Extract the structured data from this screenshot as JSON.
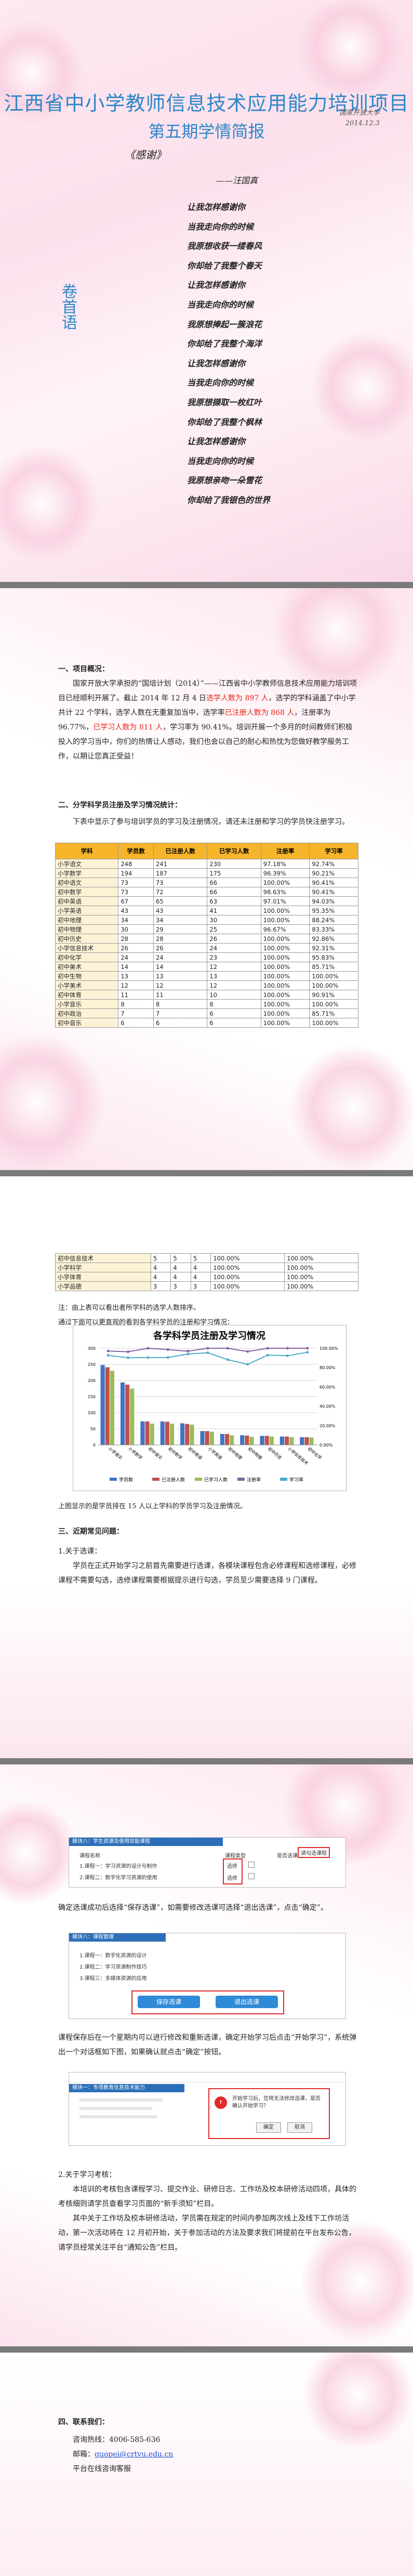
{
  "header": {
    "title": "江西省中小学教师信息技术应用能力培训项目",
    "subtitle": "第五期学情简报",
    "publisher": "国家开放大学",
    "date": "2014.12.3"
  },
  "poem": {
    "heading": "《感谢》",
    "author": "——汪国真",
    "lines": [
      "让我怎样感谢你",
      "当我走向你的时候",
      "我原想收获一缕春风",
      "你却给了我整个春天",
      "让我怎样感谢你",
      "当我走向你的时候",
      "我原想捧起一簇浪花",
      "你却给了我整个海洋",
      "让我怎样感谢你",
      "当我走向你的时候",
      "我原想撷取一枚红叶",
      "你却给了我整个枫林",
      "让我怎样感谢你",
      "当我走向你的时候",
      "我原想亲吻一朵雪花",
      "你却给了我银色的世界"
    ],
    "side_label": "卷首语"
  },
  "section1": {
    "heading": "一、项目概况：",
    "p1_a": "国家开放大学承担的“国培计划（2014）”——江西省中小学教师信息技术应用能力培训项目已经顺利开展了。截止 2014 年 12 月 4 日",
    "p1_red1": "选学人数为 897 人",
    "p1_b": "，选学的学科涵盖了中小学共计 22 个学科，选学人数在无重复加当中，选学率",
    "p1_red2": "已注册人数为 868 人",
    "p1_c": "，注册率为 96.77%，",
    "p1_red3": "已学习人数为 811 人",
    "p1_d": "，学习率为 90.41%。培训开展一个多月的时间教师们积极投入的学习当中，你们的热情让人感动，我们也会以自己的耐心和热忱为您做好教学服务工作，以期让您真正受益！"
  },
  "section2": {
    "heading": "二、分学科学员注册及学习情况统计：",
    "intro": "下表中显示了参与培训学员的学习及注册情况，请还未注册和学习的学员快注册学习。",
    "columns": [
      "学科",
      "学员数",
      "已注册人数",
      "已学习人数",
      "注册率",
      "学习率"
    ],
    "rows": [
      [
        "小学语文",
        "248",
        "241",
        "230",
        "97.18%",
        "92.74%"
      ],
      [
        "小学数学",
        "194",
        "187",
        "175",
        "96.39%",
        "90.21%"
      ],
      [
        "初中语文",
        "73",
        "73",
        "66",
        "100.00%",
        "90.41%"
      ],
      [
        "初中数学",
        "73",
        "72",
        "66",
        "98.63%",
        "90.41%"
      ],
      [
        "初中英语",
        "67",
        "65",
        "63",
        "97.01%",
        "94.03%"
      ],
      [
        "小学英语",
        "43",
        "43",
        "41",
        "100.00%",
        "95.35%"
      ],
      [
        "初中地理",
        "34",
        "34",
        "30",
        "100.00%",
        "88.24%"
      ],
      [
        "初中物理",
        "30",
        "29",
        "25",
        "96.67%",
        "83.33%"
      ],
      [
        "初中历史",
        "28",
        "28",
        "26",
        "100.00%",
        "92.86%"
      ],
      [
        "小学信息技术",
        "26",
        "26",
        "24",
        "100.00%",
        "92.31%"
      ],
      [
        "初中化学",
        "24",
        "24",
        "23",
        "100.00%",
        "95.83%"
      ],
      [
        "初中美术",
        "14",
        "14",
        "12",
        "100.00%",
        "85.71%"
      ],
      [
        "初中生物",
        "13",
        "13",
        "13",
        "100.00%",
        "100.00%"
      ],
      [
        "小学美术",
        "12",
        "12",
        "12",
        "100.00%",
        "100.00%"
      ],
      [
        "初中体育",
        "11",
        "11",
        "10",
        "100.00%",
        "90.91%"
      ],
      [
        "小学音乐",
        "8",
        "8",
        "8",
        "100.00%",
        "100.00%"
      ],
      [
        "初中政治",
        "7",
        "7",
        "6",
        "100.00%",
        "85.71%"
      ],
      [
        "初中音乐",
        "6",
        "6",
        "6",
        "100.00%",
        "100.00%"
      ]
    ],
    "rows_cont": [
      [
        "初中信息技术",
        "5",
        "5",
        "5",
        "100.00%",
        "100.00%"
      ],
      [
        "小学科学",
        "4",
        "4",
        "4",
        "100.00%",
        "100.00%"
      ],
      [
        "小学体育",
        "4",
        "4",
        "4",
        "100.00%",
        "100.00%"
      ],
      [
        "小学品德",
        "3",
        "3",
        "3",
        "100.00%",
        "100.00%"
      ]
    ],
    "note": "注：由上表可以看出者所学科的选学人数排序。",
    "chart_intro": "通过下面可以更直观的看到各学科学员的注册和学习情况：",
    "chart_caption": "上图显示的是学员排在 15 人以上学科的学员学习及注册情况。"
  },
  "chart_data": {
    "type": "bar",
    "title": "各学科学员注册及学习情况",
    "categories": [
      "小学语文",
      "小学数学",
      "初中语文",
      "初中数学",
      "初中英语",
      "小学英语",
      "初中地理",
      "初中物理",
      "初中历史",
      "小学信息技术",
      "初中化学"
    ],
    "series": [
      {
        "name": "学员数",
        "values": [
          248,
          194,
          73,
          73,
          67,
          43,
          34,
          30,
          28,
          26,
          24
        ]
      },
      {
        "name": "已注册人数",
        "values": [
          241,
          187,
          73,
          72,
          65,
          43,
          34,
          29,
          28,
          26,
          24
        ]
      },
      {
        "name": "已学习人数",
        "values": [
          230,
          175,
          66,
          66,
          63,
          41,
          30,
          25,
          26,
          24,
          23
        ]
      },
      {
        "name": "注册率",
        "values": [
          97.18,
          96.39,
          100,
          98.63,
          97.01,
          100,
          100,
          96.67,
          100,
          100,
          100
        ]
      },
      {
        "name": "学习率",
        "values": [
          92.74,
          90.21,
          90.41,
          90.41,
          94.03,
          95.35,
          88.24,
          83.33,
          92.86,
          92.31,
          95.83
        ]
      }
    ],
    "ylim": [
      0,
      300
    ],
    "y2lim": [
      0,
      100
    ],
    "yticks": [
      0,
      50,
      100,
      150,
      200,
      250,
      300
    ],
    "y2ticks": [
      "0.00%",
      "20.00%",
      "40.00%",
      "60.00%",
      "80.00%",
      "100.00%"
    ],
    "legend": "bottom",
    "colors": [
      "#4472c4",
      "#c0504d",
      "#9bbb59",
      "#8064a2",
      "#4bacc6"
    ]
  },
  "section3": {
    "heading": "三、近期常见问题：",
    "q1_title": "1.关于选课：",
    "q1_p1": "学员在正式开始学习之前首先需要进行选课，各模块课程包含必修课程和选修课程，必修课程不需要勾选，选修课程需要根据提示进行勾选，学员至少需要选择 9 门课程。",
    "q1_p2": "确定选课成功后选择“保存选课”，如需要修改选课可选择“退出选课”，点击“确定”。",
    "q1_p3": "课程保存后在一个星期内可以进行修改和重新选课，确定开始学习后点击“开始学习”，系统弹出一个对话框如下图，如果确认就点击“确定”按钮。",
    "q2_title": "2.关于学习考核：",
    "q2_p1": "本培训的考核包含课程学习、提交作业、研修日志、工作坊及校本研修活动四项，具体的考核细则请学员查看学习页面的“新手须知”栏目。",
    "q2_p2": "其中关于工作坊及校本研修活动，学员需在规定的时间内参加两次线上及线下工作坊活动，第一次活动将在 12 月初开始，关于参加活动的方法及要求我们将提前在平台发布公告，请学员经常关注平台“通知公告”栏目。"
  },
  "screens": {
    "s1_header": "模块八：学生资源及使用技能课程",
    "s1_col1": "课程名称",
    "s1_col2": "课程类型",
    "s1_col3": "是否选课",
    "s1_row1": "1.课程一：学习资源的设计与制作",
    "s1_row2": "2.课程二：数字化学习资源的使用",
    "s1_type1": "选修",
    "s1_type2": "选修",
    "s1_badge": "请勾选课程",
    "s2_header": "模块八：课程管理",
    "s2_row1": "1.课程一：数字化资源的设计",
    "s2_row2": "2.课程二：学习资源制作技巧",
    "s2_row3": "3.课程三：多媒体资源的应用",
    "s2_save": "保存选课",
    "s2_exit": "退出选课",
    "s3_tab": "模块一：专项教育信息技术能力",
    "s3_dialog": "开始学习后，您将无法修改选课，是否确认开始学习？",
    "s3_ok": "确定",
    "s3_cancel": "取消"
  },
  "section4": {
    "heading": "四、联系我们：",
    "phone_label": "咨询热线：",
    "phone": "4006-585-636",
    "email_label": "邮箱：",
    "email": "guopei@crtvu.edu.cn",
    "platform_label": "平台在线咨询客服"
  }
}
